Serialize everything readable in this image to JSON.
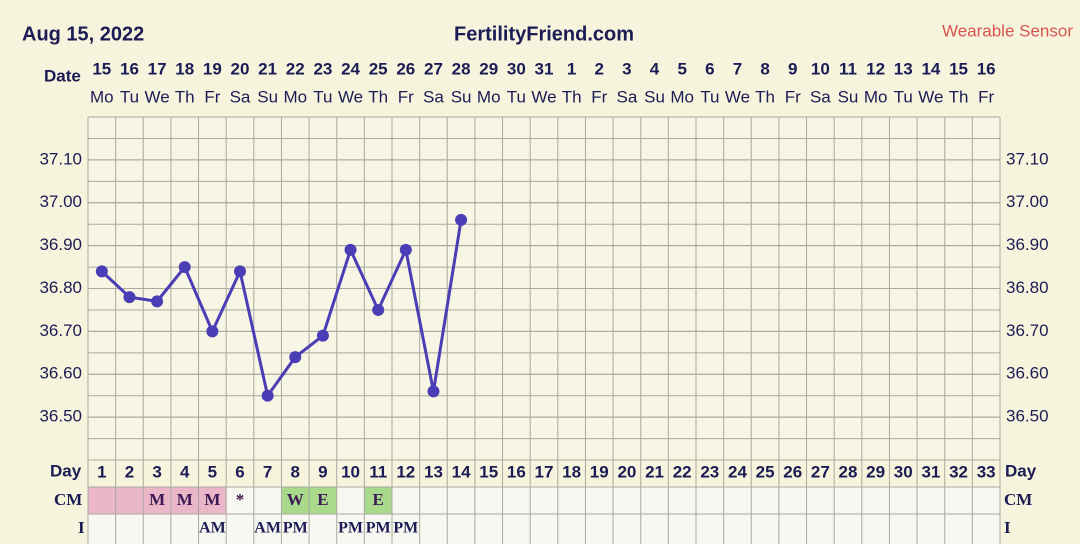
{
  "chart_data": {
    "type": "line",
    "title": "FertilityFriend.com",
    "date_label": "Aug 15, 2022",
    "subtitle": "Wearable Sensor",
    "date_row_label": "Date",
    "day_row_label": "Day",
    "cm_row_label": "CM",
    "i_row_label": "I",
    "dates": [
      15,
      16,
      17,
      18,
      19,
      20,
      21,
      22,
      23,
      24,
      25,
      26,
      27,
      28,
      29,
      30,
      31,
      1,
      2,
      3,
      4,
      5,
      6,
      7,
      8,
      9,
      10,
      11,
      12,
      13,
      14,
      15,
      16
    ],
    "weekdays": [
      "Mo",
      "Tu",
      "We",
      "Th",
      "Fr",
      "Sa",
      "Su",
      "Mo",
      "Tu",
      "We",
      "Th",
      "Fr",
      "Sa",
      "Su",
      "Mo",
      "Tu",
      "We",
      "Th",
      "Fr",
      "Sa",
      "Su",
      "Mo",
      "Tu",
      "We",
      "Th",
      "Fr",
      "Sa",
      "Su",
      "Mo",
      "Tu",
      "We",
      "Th",
      "Fr"
    ],
    "categories": [
      1,
      2,
      3,
      4,
      5,
      6,
      7,
      8,
      9,
      10,
      11,
      12,
      13,
      14,
      15,
      16,
      17,
      18,
      19,
      20,
      21,
      22,
      23,
      24,
      25,
      26,
      27,
      28,
      29,
      30,
      31,
      32,
      33
    ],
    "series": [
      {
        "color": "#4a3db5",
        "values": [
          36.84,
          36.78,
          36.77,
          36.85,
          36.7,
          36.84,
          36.55,
          36.64,
          36.69,
          36.89,
          36.75,
          36.89,
          36.56,
          36.96,
          null,
          null,
          null,
          null,
          null,
          null,
          null,
          null,
          null,
          null,
          null,
          null,
          null,
          null,
          null,
          null,
          null,
          null,
          null
        ]
      }
    ],
    "cm": [
      null,
      null,
      "M",
      "M",
      "M",
      "*",
      null,
      "W",
      "E",
      null,
      "E",
      null,
      null,
      null,
      null,
      null,
      null,
      null,
      null,
      null,
      null,
      null,
      null,
      null,
      null,
      null,
      null,
      null,
      null,
      null,
      null,
      null,
      null
    ],
    "cm_colors": [
      "#e9b7c7",
      "#e9b7c7",
      "#e9b7c7",
      "#e9b7c7",
      "#e9b7c7",
      null,
      null,
      "#a9d98b",
      "#a9d98b",
      null,
      "#a9d98b",
      null,
      null,
      null,
      null,
      null,
      null,
      null,
      null,
      null,
      null,
      null,
      null,
      null,
      null,
      null,
      null,
      null,
      null,
      null,
      null,
      null,
      null
    ],
    "intercourse": [
      null,
      null,
      null,
      null,
      "AM",
      null,
      "AM",
      "PM",
      null,
      "PM",
      "PM",
      "PM",
      null,
      null,
      null,
      null,
      null,
      null,
      null,
      null,
      null,
      null,
      null,
      null,
      null,
      null,
      null,
      null,
      null,
      null,
      null,
      null,
      null
    ],
    "ylim": [
      36.4,
      37.2
    ],
    "yticks": [
      {
        "value": 36.5,
        "label": "36.50"
      },
      {
        "value": 36.6,
        "label": "36.60"
      },
      {
        "value": 36.7,
        "label": "36.70"
      },
      {
        "value": 36.8,
        "label": "36.80"
      },
      {
        "value": 36.9,
        "label": "36.90"
      },
      {
        "value": 37.0,
        "label": "37.00"
      },
      {
        "value": 37.1,
        "label": "37.10"
      }
    ],
    "grid": true
  }
}
